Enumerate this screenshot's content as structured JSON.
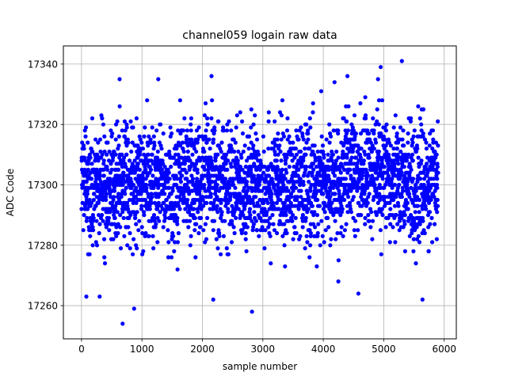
{
  "chart_data": {
    "type": "scatter",
    "title": "channel059 logain raw data",
    "xlabel": "sample number",
    "ylabel": "ADC Code",
    "xlim": [
      -300,
      6200
    ],
    "ylim": [
      17249,
      17346
    ],
    "xticks": [
      0,
      1000,
      2000,
      3000,
      4000,
      5000,
      6000
    ],
    "yticks": [
      17260,
      17280,
      17300,
      17320,
      17340
    ],
    "xtick_labels": [
      "0",
      "1000",
      "2000",
      "3000",
      "4000",
      "5000",
      "6000"
    ],
    "ytick_labels": [
      "17260",
      "17280",
      "17300",
      "17320",
      "17340"
    ],
    "grid": true,
    "marker_color": "#0000ff",
    "sample_count": 5900,
    "series": [
      {
        "x_range": [
          0,
          5900
        ],
        "typical_value": 17300,
        "typical_band": [
          17282,
          17318
        ],
        "outliers": [
          {
            "x": 680,
            "y": 17254
          },
          {
            "x": 870,
            "y": 17259
          },
          {
            "x": 2820,
            "y": 17258
          },
          {
            "x": 5300,
            "y": 17341
          },
          {
            "x": 4950,
            "y": 17339
          },
          {
            "x": 2150,
            "y": 17336
          },
          {
            "x": 630,
            "y": 17335
          },
          {
            "x": 1270,
            "y": 17335
          },
          {
            "x": 4400,
            "y": 17336
          },
          {
            "x": 4580,
            "y": 17264
          },
          {
            "x": 2180,
            "y": 17262
          },
          {
            "x": 5640,
            "y": 17262
          },
          {
            "x": 80,
            "y": 17263
          },
          {
            "x": 300,
            "y": 17263
          }
        ]
      }
    ]
  }
}
